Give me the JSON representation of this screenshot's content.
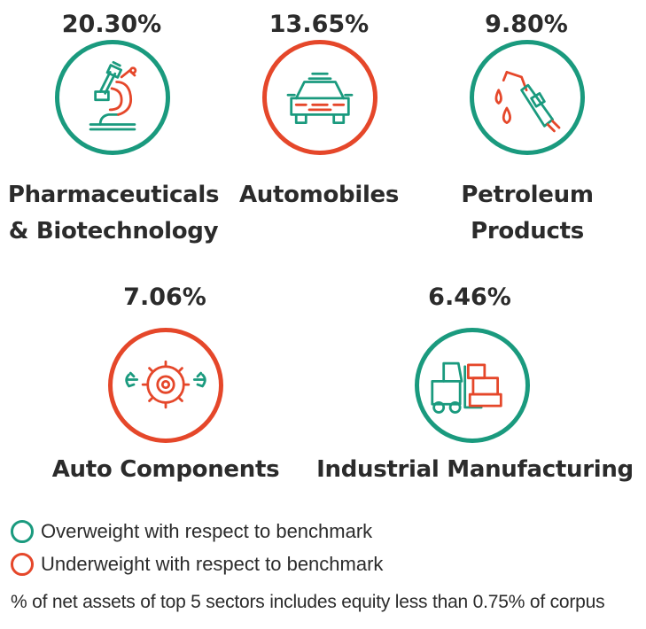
{
  "colors": {
    "overweight": "#1a9a7e",
    "underweight": "#e5472a",
    "text": "#2b2b2b"
  },
  "sectors": [
    {
      "pct": "20.30%",
      "name_line1": "Pharmaceuticals",
      "name_line2": "& Biotechnology",
      "status": "overweight",
      "icon": "microscope-icon"
    },
    {
      "pct": "13.65%",
      "name_line1": "Automobiles",
      "name_line2": "",
      "status": "underweight",
      "icon": "car-icon"
    },
    {
      "pct": "9.80%",
      "name_line1": "Petroleum",
      "name_line2": "Products",
      "status": "overweight",
      "icon": "fuel-nozzle-icon"
    },
    {
      "pct": "7.06%",
      "name_line1": "Auto Components",
      "name_line2": "",
      "status": "underweight",
      "icon": "gears-icon"
    },
    {
      "pct": "6.46%",
      "name_line1": "Industrial Manufacturing",
      "name_line2": "",
      "status": "overweight",
      "icon": "forklift-icon"
    }
  ],
  "legend": {
    "overweight_label": "Overweight with respect to benchmark",
    "underweight_label": "Underweight with respect to benchmark"
  },
  "footnote": "% of net assets of top 5 sectors includes equity less than 0.75% of corpus"
}
